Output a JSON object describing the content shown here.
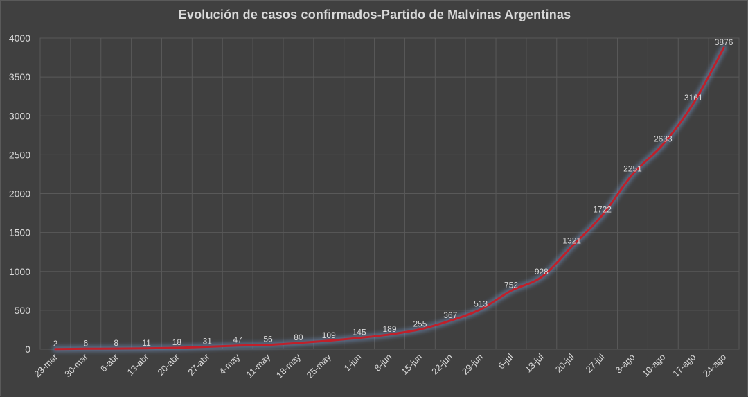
{
  "chart_data": {
    "type": "line",
    "title": "Evolución  de casos confirmados-Partido  de Malvinas  Argentinas",
    "xlabel": "",
    "ylabel": "",
    "categories": [
      "23-mar",
      "30-mar",
      "6-abr",
      "13-abr",
      "20-abr",
      "27-abr",
      "4-may",
      "11-may",
      "18-may",
      "25-may",
      "1-jun",
      "8-jun",
      "15-jun",
      "22-jun",
      "29-jun",
      "6-jul",
      "13-jul",
      "20-jul",
      "27-jul",
      "3-ago",
      "10-ago",
      "17-ago",
      "24-ago"
    ],
    "series": [
      {
        "values": [
          2,
          6,
          8,
          11,
          18,
          31,
          47,
          56,
          80,
          109,
          145,
          189,
          255,
          367,
          513,
          752,
          928,
          1321,
          1722,
          2251,
          2633,
          3161,
          3876
        ]
      }
    ],
    "ylim": [
      0,
      4000
    ],
    "yticks": [
      0,
      500,
      1000,
      1500,
      2000,
      2500,
      3000,
      3500,
      4000
    ],
    "grid": true,
    "legend": "none",
    "colors": {
      "background": "#404040",
      "line": "#c0202a",
      "glow": "#6f8fbf",
      "grid": "#595959",
      "text": "#d9d9d9"
    }
  }
}
